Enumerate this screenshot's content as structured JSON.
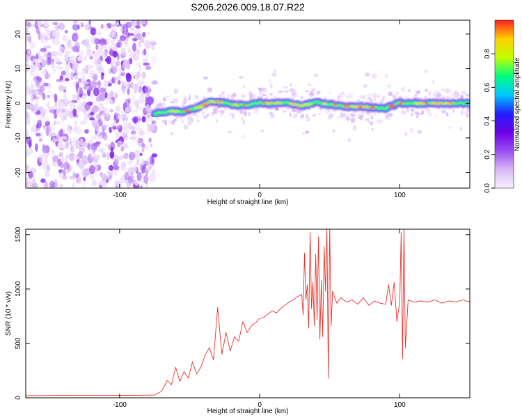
{
  "title": "S206.2026.009.18.07.R22",
  "colors": {
    "snr_line": "#e8302a",
    "colormap": [
      "#f8f0ff",
      "#d9b8f5",
      "#9a4df0",
      "#6a00e6",
      "#2020ff",
      "#00c8ff",
      "#00ff80",
      "#c0ff00",
      "#ffd000",
      "#ff2020"
    ]
  },
  "chart_data": [
    {
      "type": "heatmap",
      "title": "S206.2026.009.18.07.R22",
      "xlabel": "Height of straight line (km)",
      "ylabel": "Frequency (Hz)",
      "xlim": [
        -167,
        150
      ],
      "ylim": [
        -24.5,
        24
      ],
      "x_ticks": [
        -100,
        0,
        100
      ],
      "y_ticks": [
        -20,
        -10,
        0,
        10,
        20
      ],
      "colorbar": {
        "label": "Normalized spectral amplitude",
        "range": [
          0,
          1
        ],
        "ticks": [
          "0.0",
          "0.2",
          "0.4",
          "0.6",
          "0.8"
        ],
        "tick_values": [
          0,
          0.2,
          0.4,
          0.6,
          0.8
        ]
      },
      "noise_region_x": [
        -167,
        -75
      ],
      "ridge": {
        "x": [
          -75,
          -65,
          -55,
          -45,
          -35,
          -28,
          -20,
          -10,
          0,
          10,
          20,
          30,
          40,
          50,
          60,
          70,
          80,
          90,
          100,
          110,
          120,
          130,
          140,
          150
        ],
        "freq": [
          -3,
          -2.2,
          -2.5,
          -1.5,
          0.5,
          0.3,
          -0.3,
          -0.6,
          0.1,
          0.0,
          0.1,
          -0.8,
          0.3,
          -0.3,
          -0.8,
          -1.0,
          -1.2,
          -1.4,
          0.1,
          0.0,
          0.0,
          0.0,
          0.0,
          0.0
        ]
      }
    },
    {
      "type": "line",
      "xlabel": "Height of straight line (km)",
      "ylabel": "SNR (10 * v/v)",
      "xlim": [
        -167,
        150
      ],
      "ylim": [
        0,
        1550
      ],
      "x_ticks": [
        -100,
        0,
        100
      ],
      "y_ticks": [
        0,
        500,
        1000,
        1500
      ],
      "series": [
        {
          "x": [
            -167,
            -140,
            -110,
            -90,
            -75,
            -70,
            -66,
            -63,
            -60,
            -57,
            -54,
            -51,
            -48,
            -45,
            -42,
            -39,
            -36,
            -33,
            -30,
            -27,
            -24,
            -21,
            -18,
            -15,
            -12,
            -9,
            -6,
            -3,
            0,
            3,
            6,
            9,
            12,
            15,
            18,
            21,
            24,
            27,
            30,
            31,
            32,
            33,
            34,
            35,
            36,
            37,
            38,
            39,
            40,
            41,
            42,
            43,
            44,
            45,
            46,
            47,
            48,
            49,
            50,
            51,
            52,
            55,
            58,
            62,
            66,
            70,
            74,
            78,
            82,
            86,
            90,
            92,
            94,
            96,
            98,
            100,
            101,
            102,
            103,
            104,
            106,
            110,
            115,
            120,
            125,
            130,
            135,
            140,
            145,
            150
          ],
          "y": [
            20,
            22,
            21,
            23,
            25,
            60,
            160,
            120,
            280,
            150,
            240,
            180,
            330,
            220,
            280,
            390,
            460,
            350,
            830,
            400,
            600,
            430,
            560,
            520,
            700,
            600,
            660,
            690,
            730,
            740,
            770,
            800,
            780,
            820,
            850,
            880,
            900,
            930,
            950,
            760,
            1330,
            900,
            1040,
            640,
            1520,
            820,
            1060,
            660,
            1320,
            720,
            1480,
            540,
            1080,
            560,
            1390,
            980,
            1560,
            180,
            1560,
            660,
            980,
            870,
            920,
            880,
            900,
            860,
            920,
            850,
            890,
            870,
            860,
            1040,
            850,
            1060,
            700,
            890,
            1520,
            360,
            1560,
            460,
            900,
            880,
            890,
            880,
            900,
            870,
            890,
            880,
            900,
            880
          ]
        }
      ]
    }
  ]
}
